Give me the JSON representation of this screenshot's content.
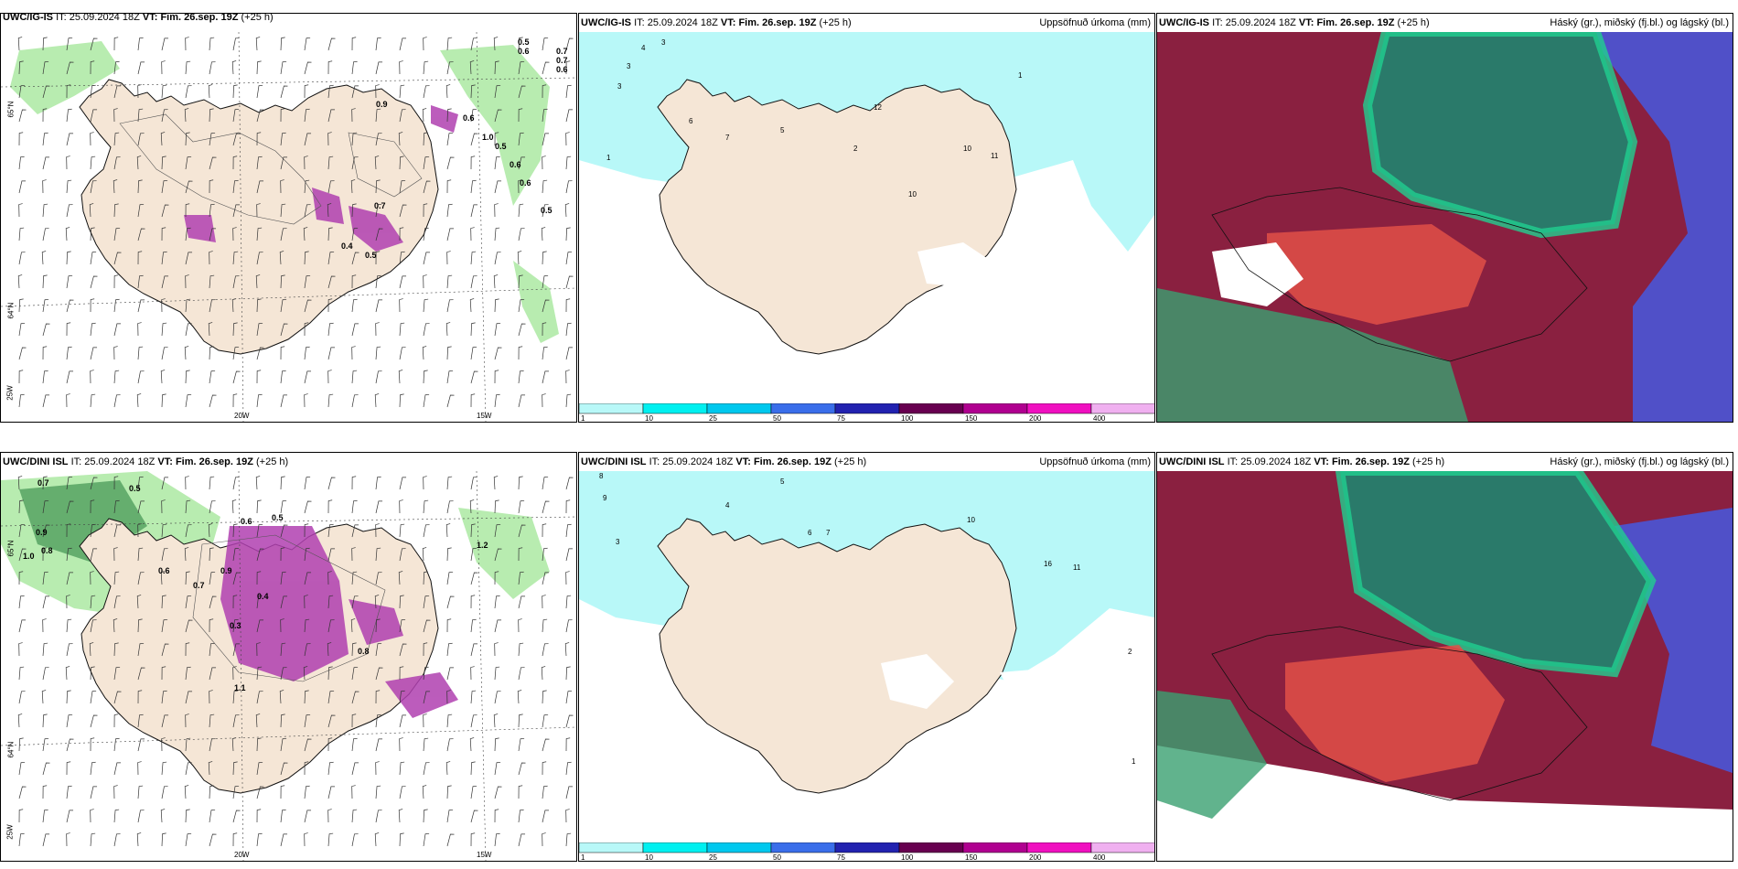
{
  "panels": [
    {
      "id": "p1",
      "model_prefix": "UWC/IG-IS",
      "it_label": "IT:",
      "it_value": "25.09.2024 18Z",
      "vt_label": "VT:",
      "vt_value": "Fim. 26.sep. 19Z",
      "lead": "(+25 h)",
      "right_title": "",
      "axis_labels": {
        "left": [
          "65°N",
          "64°N",
          "25W"
        ],
        "bottom": [
          "20W",
          "15W"
        ]
      },
      "values": [
        "0.5",
        "0.6",
        "0.7",
        "0.7",
        "0.6",
        "0.9",
        "0.6",
        "1.0",
        "0.5",
        "0.6",
        "0.6",
        "0.5",
        "0.7",
        "0.4",
        "0.5"
      ]
    },
    {
      "id": "p2",
      "model_prefix": "UWC/IG-IS",
      "it_label": "IT:",
      "it_value": "25.09.2024 18Z",
      "vt_label": "VT:",
      "vt_value": "Fim. 26.sep. 19Z",
      "lead": "(+25 h)",
      "right_title": "Uppsöfnuð úrkoma (mm)",
      "values": [
        "1",
        "2",
        "3",
        "4",
        "5",
        "6",
        "7",
        "10",
        "11",
        "12"
      ]
    },
    {
      "id": "p3",
      "model_prefix": "UWC/IG-IS",
      "it_label": "IT:",
      "it_value": "25.09.2024 18Z",
      "vt_label": "VT:",
      "vt_value": "Fim. 26.sep. 19Z",
      "lead": "(+25 h)",
      "right_title": "Háský (gr.), miðský (fj.bl.) og lágský (bl.)"
    },
    {
      "id": "p4",
      "model_prefix": "UWC/DINI ISL",
      "it_label": "IT:",
      "it_value": "25.09.2024 18Z",
      "vt_label": "VT:",
      "vt_value": "Fim. 26.sep. 19Z",
      "lead": "(+25 h)",
      "right_title": "",
      "axis_labels": {
        "left": [
          "65°N",
          "64°N",
          "25W"
        ],
        "bottom": [
          "20W",
          "15W"
        ]
      },
      "values": [
        "0.7",
        "0.5",
        "0.9",
        "0.8",
        "1.0",
        "0.6",
        "0.9",
        "0.7",
        "0.6",
        "0.5",
        "0.4",
        "0.3",
        "1.2",
        "0.8",
        "1.1"
      ]
    },
    {
      "id": "p5",
      "model_prefix": "UWC/DINI ISL",
      "it_label": "IT:",
      "it_value": "25.09.2024 18Z",
      "vt_label": "VT:",
      "vt_value": "Fim. 26.sep. 19Z",
      "lead": "(+25 h)",
      "right_title": "Uppsöfnuð úrkoma (mm)",
      "values": [
        "8",
        "9",
        "5",
        "4",
        "3",
        "6",
        "7",
        "10",
        "16",
        "11",
        "2",
        "1"
      ]
    },
    {
      "id": "p6",
      "model_prefix": "UWC/DINI ISL",
      "it_label": "IT:",
      "it_value": "25.09.2024 18Z",
      "vt_label": "VT:",
      "vt_value": "Fim. 26.sep. 19Z",
      "lead": "(+25 h)",
      "right_title": "Háský (gr.), miðský (fj.bl.) og lágský (bl.)"
    }
  ],
  "colorbar": {
    "ticks": [
      "1",
      "10",
      "25",
      "50",
      "75",
      "100",
      "150",
      "200",
      "400"
    ],
    "colors": [
      "#b8f8f8",
      "#00f0f0",
      "#00c8ee",
      "#3a6eea",
      "#2222b0",
      "#680050",
      "#b00090",
      "#f010c0",
      "#f0b0f0"
    ]
  },
  "colors": {
    "land": "#f5e6d6",
    "precip_light": "#b8f8f8",
    "wind_green": "#b8ecb0",
    "purple": "#b040b0",
    "high_cloud": "#2fa86a",
    "mid_cloud": "#b8303a",
    "low_cloud": "#4848c8"
  }
}
